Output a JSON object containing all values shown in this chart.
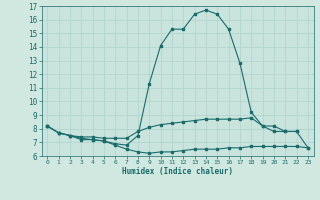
{
  "xlabel": "Humidex (Indice chaleur)",
  "bg_color": "#d0e8e0",
  "plot_bg_color": "#c8e4dc",
  "line_color": "#1a6b6b",
  "grid_color": "#b0d4cc",
  "xlim": [
    0,
    23
  ],
  "ylim": [
    6,
    17
  ],
  "xticks": [
    0,
    1,
    2,
    3,
    4,
    5,
    6,
    7,
    8,
    9,
    10,
    11,
    12,
    13,
    14,
    15,
    16,
    17,
    18,
    19,
    20,
    21,
    22,
    23
  ],
  "yticks": [
    6,
    7,
    8,
    9,
    10,
    11,
    12,
    13,
    14,
    15,
    16,
    17
  ],
  "line1_x": [
    0,
    1,
    2,
    3,
    4,
    5,
    6,
    7,
    8,
    9,
    10,
    11,
    12,
    13,
    14,
    15,
    16,
    17,
    18,
    19,
    20,
    21,
    22
  ],
  "line1_y": [
    8.2,
    7.7,
    7.5,
    7.2,
    7.2,
    7.1,
    6.9,
    6.8,
    7.5,
    11.3,
    14.1,
    15.3,
    15.3,
    16.4,
    16.7,
    16.4,
    15.3,
    12.8,
    9.2,
    8.2,
    7.8,
    7.8,
    7.8
  ],
  "line2_x": [
    0,
    1,
    2,
    3,
    4,
    5,
    6,
    7,
    8,
    9,
    10,
    11,
    12,
    13,
    14,
    15,
    16,
    17,
    18,
    19,
    20,
    21,
    22,
    23
  ],
  "line2_y": [
    8.2,
    7.7,
    7.5,
    7.4,
    7.4,
    7.3,
    7.3,
    7.3,
    7.8,
    8.1,
    8.3,
    8.4,
    8.5,
    8.6,
    8.7,
    8.7,
    8.7,
    8.7,
    8.8,
    8.2,
    8.2,
    7.8,
    7.8,
    6.6
  ],
  "line3_x": [
    0,
    1,
    2,
    3,
    4,
    5,
    6,
    7,
    8,
    9,
    10,
    11,
    12,
    13,
    14,
    15,
    16,
    17,
    18,
    19,
    20,
    21,
    22,
    23
  ],
  "line3_y": [
    8.2,
    7.7,
    7.5,
    7.3,
    7.2,
    7.1,
    6.8,
    6.5,
    6.3,
    6.2,
    6.3,
    6.3,
    6.4,
    6.5,
    6.5,
    6.5,
    6.6,
    6.6,
    6.7,
    6.7,
    6.7,
    6.7,
    6.7,
    6.6
  ]
}
